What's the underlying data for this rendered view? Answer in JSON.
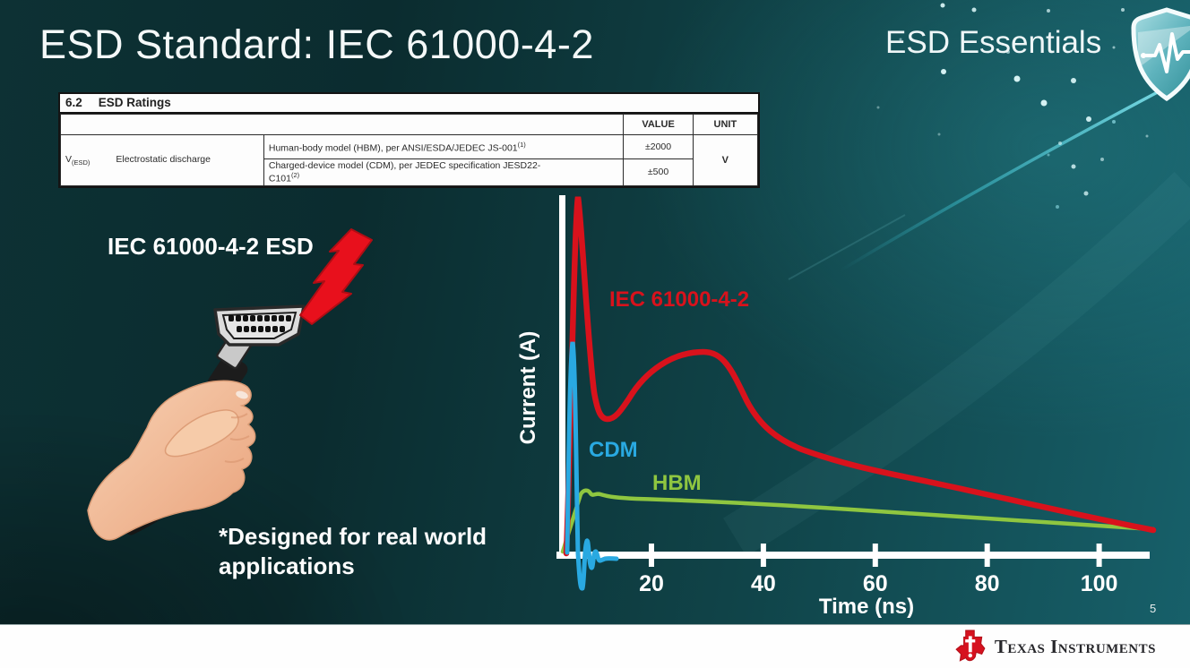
{
  "slide": {
    "title": "ESD Standard: IEC 61000-4-2",
    "program": "ESD Essentials",
    "page_number": "5",
    "footnote_line1": "*Designed for real world",
    "footnote_line2": "applications",
    "footer_brand": "Texas Instruments"
  },
  "illustration": {
    "label": "IEC 61000-4-2 ESD"
  },
  "ratings_table": {
    "section_number": "6.2",
    "section_title": "ESD Ratings",
    "col_value": "VALUE",
    "col_unit": "UNIT",
    "symbol": "V",
    "symbol_sub": "(ESD)",
    "parameter": "Electrostatic discharge",
    "hbm_text": "Human-body model (HBM), per ANSI/ESDA/JEDEC JS-001",
    "hbm_sup": "(1)",
    "hbm_value": "±2000",
    "cdm_text_line1": "Charged-device model (CDM), per JEDEC specification JESD22-",
    "cdm_text_line2": "C101",
    "cdm_sup": "(2)",
    "cdm_value": "±500",
    "unit": "V"
  },
  "chart_data": {
    "type": "line",
    "title": "",
    "xlabel": "Time (ns)",
    "ylabel": "Current (A)",
    "x_ticks": [
      20,
      40,
      60,
      80,
      100
    ],
    "xlim": [
      0,
      112
    ],
    "ylim": [
      -0.12,
      1.05
    ],
    "y_units": "relative amplitude (axis unlabeled)",
    "grid": false,
    "legend_position": "inline labels next to curves",
    "series": [
      {
        "name": "IEC 61000-4-2",
        "color": "#d8121c",
        "x": [
          4,
          5.5,
          7,
          9,
          11,
          13,
          17,
          22,
          29,
          36,
          43,
          50,
          60,
          70,
          80,
          90,
          100,
          108
        ],
        "y": [
          0,
          0.55,
          1.0,
          0.55,
          0.42,
          0.38,
          0.44,
          0.53,
          0.57,
          0.49,
          0.37,
          0.3,
          0.235,
          0.19,
          0.15,
          0.11,
          0.08,
          0.065
        ]
      },
      {
        "name": "CDM",
        "color": "#29a9e1",
        "x": [
          4.5,
          5.3,
          6.2,
          7,
          7.8,
          8.6,
          9.4,
          10.2,
          11,
          12,
          13.5
        ],
        "y": [
          0,
          0.59,
          0,
          -0.1,
          0.045,
          -0.05,
          0.015,
          -0.025,
          -0.01,
          -0.005,
          0
        ]
      },
      {
        "name": "HBM",
        "color": "#8fc640",
        "x": [
          4,
          7.5,
          8.5,
          9.5,
          10.5,
          15,
          30,
          50,
          70,
          90,
          108
        ],
        "y": [
          0,
          0.168,
          0.176,
          0.16,
          0.17,
          0.153,
          0.147,
          0.135,
          0.118,
          0.1,
          0.068
        ]
      }
    ]
  }
}
